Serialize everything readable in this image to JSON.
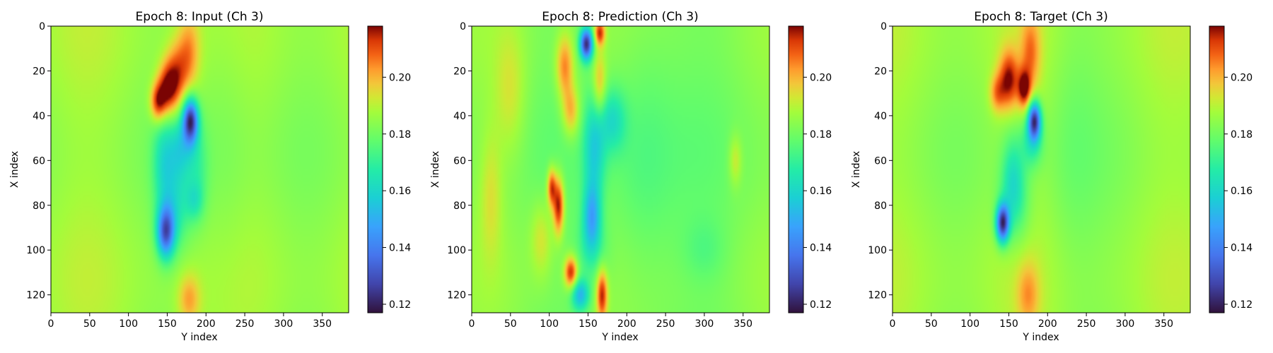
{
  "chart_data": [
    {
      "type": "heatmap",
      "title": "Epoch 8: Input (Ch 3)",
      "xlabel": "Y index",
      "ylabel": "X index",
      "xlim": [
        0,
        384
      ],
      "ylim": [
        128,
        0
      ],
      "xticks": [
        "0",
        "50",
        "100",
        "150",
        "200",
        "250",
        "300",
        "350"
      ],
      "yticks": [
        "0",
        "20",
        "40",
        "60",
        "80",
        "100",
        "120"
      ],
      "colorbar": {
        "range": [
          0.117,
          0.218
        ],
        "ticks": [
          "0.12",
          "0.14",
          "0.16",
          "0.18",
          "0.20"
        ],
        "colormap": "turbo"
      },
      "base_value": 0.186,
      "features": [
        {
          "x": 178,
          "y": 12,
          "sx": 10,
          "sy": 12,
          "a": 0.018
        },
        {
          "x": 150,
          "y": 28,
          "sx": 9,
          "sy": 8,
          "a": 0.03
        },
        {
          "x": 138,
          "y": 34,
          "sx": 7,
          "sy": 6,
          "a": 0.028
        },
        {
          "x": 162,
          "y": 22,
          "sx": 10,
          "sy": 10,
          "a": 0.022
        },
        {
          "x": 180,
          "y": 42,
          "sx": 7,
          "sy": 7,
          "a": -0.056
        },
        {
          "x": 168,
          "y": 54,
          "sx": 12,
          "sy": 10,
          "a": -0.02
        },
        {
          "x": 145,
          "y": 60,
          "sx": 10,
          "sy": 14,
          "a": -0.016
        },
        {
          "x": 148,
          "y": 92,
          "sx": 8,
          "sy": 8,
          "a": -0.048
        },
        {
          "x": 160,
          "y": 80,
          "sx": 14,
          "sy": 14,
          "a": -0.018
        },
        {
          "x": 185,
          "y": 78,
          "sx": 8,
          "sy": 6,
          "a": -0.012
        },
        {
          "x": 190,
          "y": 64,
          "sx": 10,
          "sy": 16,
          "a": -0.01
        },
        {
          "x": 178,
          "y": 122,
          "sx": 10,
          "sy": 8,
          "a": 0.016
        },
        {
          "x": 225,
          "y": 50,
          "sx": 25,
          "sy": 60,
          "a": -0.005
        }
      ]
    },
    {
      "type": "heatmap",
      "title": "Epoch 8: Prediction (Ch 3)",
      "xlabel": "Y index",
      "ylabel": "X index",
      "xlim": [
        0,
        384
      ],
      "ylim": [
        128,
        0
      ],
      "xticks": [
        "0",
        "50",
        "100",
        "150",
        "200",
        "250",
        "300",
        "350"
      ],
      "yticks": [
        "0",
        "20",
        "40",
        "60",
        "80",
        "100",
        "120"
      ],
      "colorbar": {
        "range": [
          0.117,
          0.218
        ],
        "ticks": [
          "0.12",
          "0.14",
          "0.16",
          "0.18",
          "0.20"
        ],
        "colormap": "turbo"
      },
      "base_value": 0.182,
      "features": [
        {
          "x": 148,
          "y": 8,
          "sx": 6,
          "sy": 5,
          "a": -0.06
        },
        {
          "x": 165,
          "y": 3,
          "sx": 5,
          "sy": 4,
          "a": 0.03
        },
        {
          "x": 120,
          "y": 18,
          "sx": 8,
          "sy": 10,
          "a": 0.024
        },
        {
          "x": 128,
          "y": 38,
          "sx": 8,
          "sy": 8,
          "a": 0.02
        },
        {
          "x": 165,
          "y": 26,
          "sx": 6,
          "sy": 10,
          "a": 0.018
        },
        {
          "x": 182,
          "y": 42,
          "sx": 12,
          "sy": 10,
          "a": -0.018
        },
        {
          "x": 158,
          "y": 55,
          "sx": 10,
          "sy": 16,
          "a": -0.022
        },
        {
          "x": 112,
          "y": 80,
          "sx": 5,
          "sy": 9,
          "a": 0.036
        },
        {
          "x": 103,
          "y": 72,
          "sx": 4,
          "sy": 6,
          "a": 0.03
        },
        {
          "x": 155,
          "y": 85,
          "sx": 8,
          "sy": 10,
          "a": -0.028
        },
        {
          "x": 140,
          "y": 120,
          "sx": 8,
          "sy": 5,
          "a": -0.03
        },
        {
          "x": 128,
          "y": 110,
          "sx": 6,
          "sy": 5,
          "a": 0.034
        },
        {
          "x": 168,
          "y": 120,
          "sx": 5,
          "sy": 8,
          "a": 0.032
        },
        {
          "x": 155,
          "y": 100,
          "sx": 14,
          "sy": 10,
          "a": -0.012
        },
        {
          "x": 50,
          "y": 30,
          "sx": 14,
          "sy": 20,
          "a": 0.01
        },
        {
          "x": 25,
          "y": 75,
          "sx": 10,
          "sy": 20,
          "a": 0.01
        },
        {
          "x": 90,
          "y": 95,
          "sx": 10,
          "sy": 12,
          "a": 0.012
        },
        {
          "x": 220,
          "y": 60,
          "sx": 30,
          "sy": 50,
          "a": -0.008
        },
        {
          "x": 340,
          "y": 60,
          "sx": 6,
          "sy": 8,
          "a": 0.012
        },
        {
          "x": 300,
          "y": 100,
          "sx": 20,
          "sy": 10,
          "a": -0.006
        }
      ]
    },
    {
      "type": "heatmap",
      "title": "Epoch 8: Target (Ch 3)",
      "xlabel": "Y index",
      "ylabel": "X index",
      "xlim": [
        0,
        384
      ],
      "ylim": [
        128,
        0
      ],
      "xticks": [
        "0",
        "50",
        "100",
        "150",
        "200",
        "250",
        "300",
        "350"
      ],
      "yticks": [
        "0",
        "20",
        "40",
        "60",
        "80",
        "100",
        "120"
      ],
      "colorbar": {
        "range": [
          0.117,
          0.218
        ],
        "ticks": [
          "0.12",
          "0.14",
          "0.16",
          "0.18",
          "0.20"
        ],
        "colormap": "turbo"
      },
      "base_value": 0.186,
      "features": [
        {
          "x": 178,
          "y": 12,
          "sx": 9,
          "sy": 12,
          "a": 0.018
        },
        {
          "x": 150,
          "y": 24,
          "sx": 9,
          "sy": 9,
          "a": 0.03
        },
        {
          "x": 170,
          "y": 28,
          "sx": 6,
          "sy": 6,
          "a": 0.03
        },
        {
          "x": 135,
          "y": 30,
          "sx": 7,
          "sy": 6,
          "a": 0.018
        },
        {
          "x": 183,
          "y": 42,
          "sx": 6,
          "sy": 6,
          "a": -0.058
        },
        {
          "x": 180,
          "y": 52,
          "sx": 10,
          "sy": 8,
          "a": -0.018
        },
        {
          "x": 155,
          "y": 65,
          "sx": 10,
          "sy": 14,
          "a": -0.014
        },
        {
          "x": 142,
          "y": 88,
          "sx": 6,
          "sy": 6,
          "a": -0.06
        },
        {
          "x": 158,
          "y": 78,
          "sx": 14,
          "sy": 14,
          "a": -0.016
        },
        {
          "x": 175,
          "y": 120,
          "sx": 10,
          "sy": 10,
          "a": 0.014
        },
        {
          "x": 230,
          "y": 50,
          "sx": 25,
          "sy": 60,
          "a": -0.005
        }
      ]
    }
  ]
}
